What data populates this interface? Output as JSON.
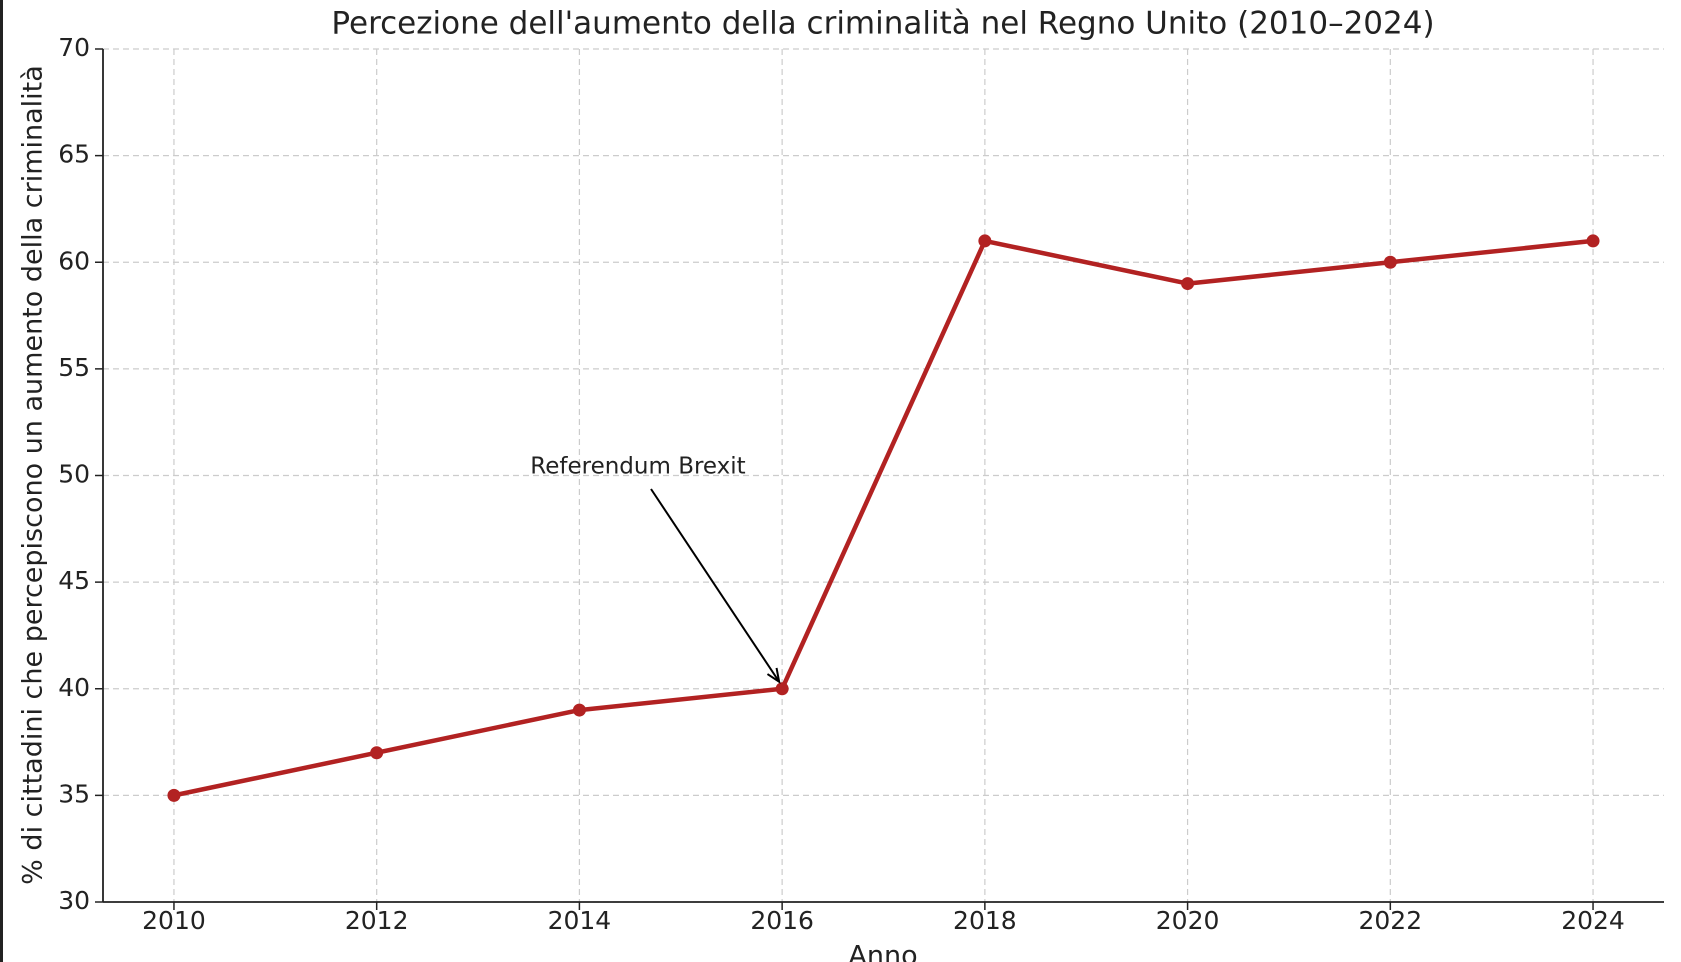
{
  "chart_data": {
    "type": "line",
    "title": "Percezione dell'aumento della criminalità nel Regno Unito (2010–2024)",
    "x_label": "Anno",
    "y_label": "% di cittadini che percepiscono un aumento della criminalità",
    "x": [
      2010,
      2012,
      2014,
      2016,
      2018,
      2020,
      2022,
      2024
    ],
    "series": [
      {
        "color": "#b22222",
        "values": [
          35,
          37,
          39,
          40,
          61,
          59,
          60,
          61
        ]
      }
    ],
    "annotation": "Referendum Brexit",
    "xlim": [
      2009.3,
      2024.7
    ],
    "xticks": [
      2010,
      2012,
      2014,
      2016,
      2018,
      2020,
      2022,
      2024
    ],
    "ylim": [
      30,
      70
    ],
    "yticks": [
      30,
      35,
      40,
      45,
      50,
      55,
      60,
      65,
      70
    ],
    "grid": true
  }
}
